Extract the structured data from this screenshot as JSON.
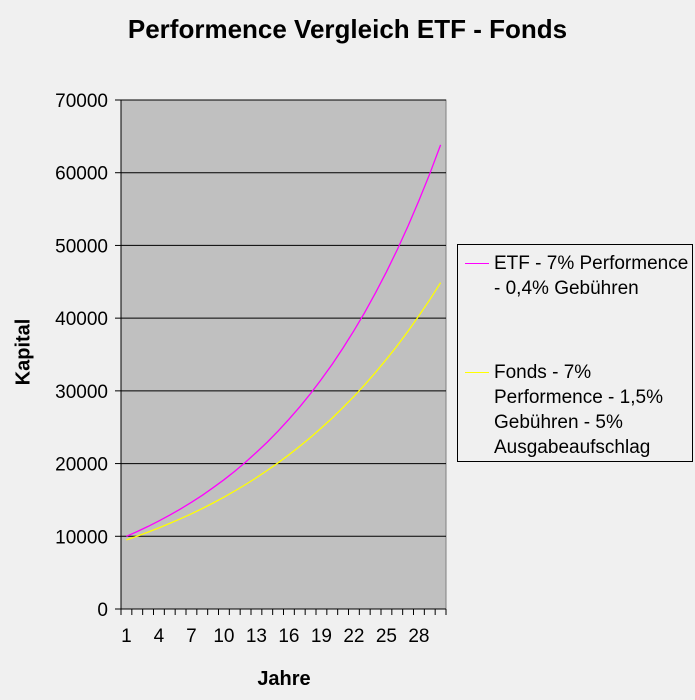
{
  "chart_data": {
    "type": "line",
    "title": "Performence Vergleich ETF - Fonds",
    "xlabel": "Jahre",
    "ylabel": "Kapital",
    "xlim": [
      1,
      30
    ],
    "ylim": [
      0,
      70000
    ],
    "y_ticks": [
      0,
      10000,
      20000,
      30000,
      40000,
      50000,
      60000,
      70000
    ],
    "x_tick_labels": [
      1,
      4,
      7,
      10,
      13,
      16,
      19,
      22,
      25,
      28
    ],
    "grid": true,
    "legend_position": "right",
    "x": [
      1,
      2,
      3,
      4,
      5,
      6,
      7,
      8,
      9,
      10,
      11,
      12,
      13,
      14,
      15,
      16,
      17,
      18,
      19,
      20,
      21,
      22,
      23,
      24,
      25,
      26,
      27,
      28,
      29,
      30
    ],
    "series": [
      {
        "name": "ETF - 7% Performence - 0,4% Gebühren",
        "color": "#ff00ff",
        "values": [
          10000,
          10660,
          11364,
          12114,
          12913,
          13765,
          14674,
          15642,
          16675,
          17775,
          18949,
          20199,
          21532,
          22953,
          24468,
          26083,
          27805,
          29640,
          31596,
          33682,
          35905,
          38274,
          40800,
          43493,
          46364,
          49424,
          52686,
          56163,
          59870,
          63821
        ]
      },
      {
        "name": "Fonds - 7% Performence - 1,5% Gebühren - 5% Ausgabeaufschlag",
        "color": "#ffff00",
        "values": [
          9500,
          10023,
          10574,
          11155,
          11769,
          12416,
          13099,
          13819,
          14580,
          15381,
          16227,
          17120,
          18062,
          19055,
          20103,
          21209,
          22375,
          23606,
          24904,
          26274,
          27719,
          29244,
          30852,
          32549,
          34339,
          36228,
          38220,
          40323,
          42540,
          44880
        ]
      }
    ]
  }
}
